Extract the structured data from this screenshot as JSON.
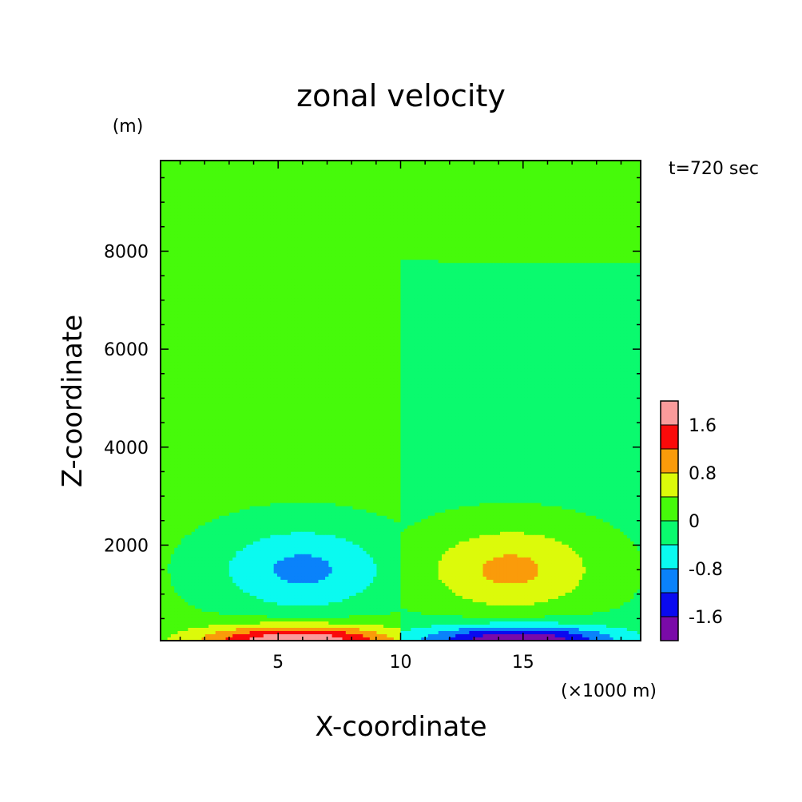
{
  "chart_data": {
    "type": "heatmap",
    "title": "zonal velocity",
    "xlabel": "X-coordinate",
    "ylabel": "Z-coordinate",
    "x_unit": "(×1000 m)",
    "y_unit": "(m)",
    "time_label": "t=720 sec",
    "xlim": [
      0.2,
      19.8
    ],
    "ylim": [
      50,
      9850
    ],
    "x_ticks": [
      5,
      10,
      15
    ],
    "y_ticks": [
      2000,
      4000,
      6000,
      8000
    ],
    "colorbar": {
      "levels": [
        -2.0,
        -1.6,
        -1.2,
        -0.8,
        -0.4,
        0.0,
        0.4,
        0.8,
        1.2,
        1.6,
        2.0
      ],
      "colors": [
        "#7a0aa8",
        "#0a0af0",
        "#0a82fa",
        "#0afaf0",
        "#0afa6e",
        "#46fa0a",
        "#dcfa0a",
        "#fa9b0a",
        "#fa0a0a",
        "#fa9b9b"
      ],
      "tick_labels": [
        "-1.6",
        "-0.8",
        "0",
        "0.8",
        "1.6"
      ],
      "tick_values": [
        -1.6,
        -0.8,
        0.0,
        0.8,
        1.6
      ]
    },
    "features": [
      {
        "name": "upper-field-left",
        "value": 0.2,
        "x_range": [
          0.2,
          10.0
        ],
        "z_range": [
          7700,
          9850
        ]
      },
      {
        "name": "upper-field-right",
        "value": 0.1,
        "x_range": [
          10.0,
          19.8
        ],
        "z_range": [
          7800,
          9850
        ]
      },
      {
        "name": "mid-field-left",
        "value": 0.1,
        "x_range": [
          0.2,
          10.0
        ],
        "z_range": [
          3000,
          7700
        ]
      },
      {
        "name": "mid-field-right",
        "value": -0.1,
        "x_range": [
          10.0,
          19.8
        ],
        "z_range": [
          3000,
          7800
        ]
      },
      {
        "name": "left-upper-vortex",
        "value": -1.0,
        "center": [
          6.0,
          1500
        ],
        "extent_x": [
          1.2,
          9.0
        ],
        "extent_z": [
          750,
          2350
        ]
      },
      {
        "name": "right-upper-vortex",
        "value": 1.0,
        "center": [
          14.5,
          1500
        ],
        "extent_x": [
          11.0,
          19.0
        ],
        "extent_z": [
          750,
          2350
        ]
      },
      {
        "name": "left-surface-jet",
        "value": 2.0,
        "center": [
          5.8,
          50
        ],
        "extent_x": [
          0.7,
          9.5
        ],
        "extent_z": [
          50,
          600
        ]
      },
      {
        "name": "right-surface-jet",
        "value": -2.0,
        "center": [
          14.8,
          50
        ],
        "extent_x": [
          10.8,
          19.6
        ],
        "extent_z": [
          50,
          600
        ]
      }
    ]
  }
}
